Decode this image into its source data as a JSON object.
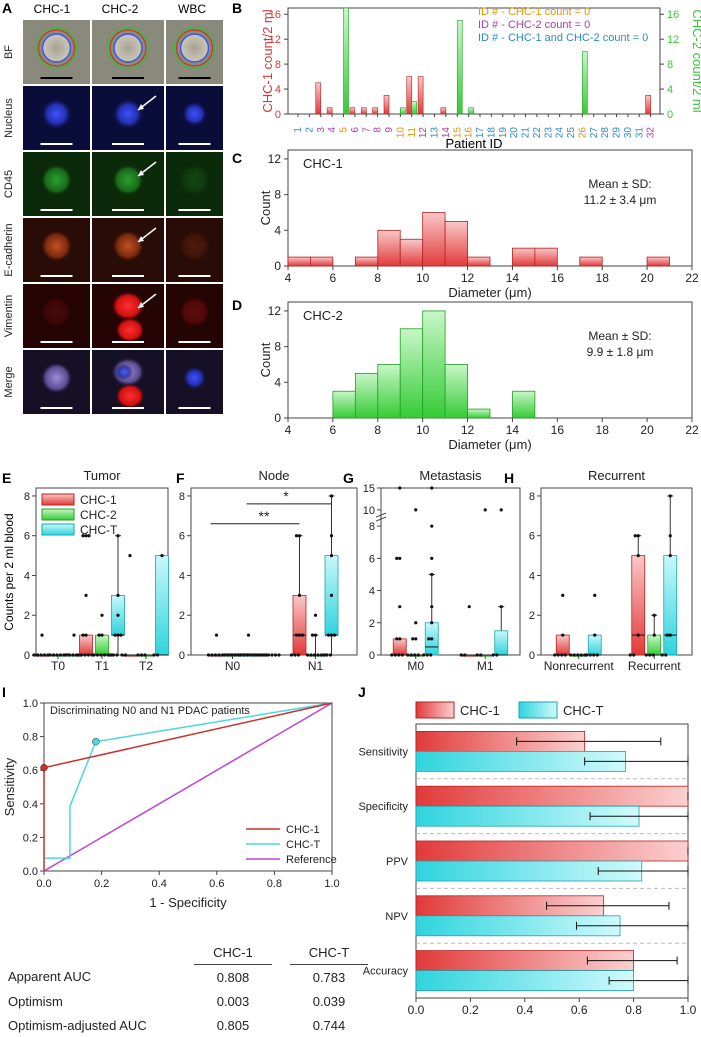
{
  "panelA": {
    "label": "A",
    "columns": [
      "CHC-1",
      "CHC-2",
      "WBC"
    ],
    "rows": [
      "BF",
      "Nucleus",
      "CD45",
      "E-cadherin",
      "Vimentin",
      "Merge"
    ],
    "colors": {
      "BF": "#8a8a7c",
      "Nucleus": "#0a0c3a",
      "CD45": "#0a2a0a",
      "E-cadherin": "#2a0c06",
      "Vimentin": "#250404",
      "Merge": "#161026"
    }
  },
  "panelB": {
    "label": "B",
    "ylabel_left": "CHC-1 count/2 ml",
    "ylabel_right": "CHC-2 count/2 ml",
    "xlabel": "Patient ID",
    "legend": [
      {
        "text": "ID # - CHC-1 count = 0",
        "color": "#e69500"
      },
      {
        "text": "ID # - CHC-2 count = 0",
        "color": "#b03ab0"
      },
      {
        "text": "ID # - CHC-1 and CHC-2 count = 0",
        "color": "#2e8bc9"
      }
    ]
  },
  "panelC": {
    "label": "C"
  },
  "panelD": {
    "label": "D"
  },
  "panelE": {
    "label": "E"
  },
  "panelF": {
    "label": "F"
  },
  "panelG": {
    "label": "G"
  },
  "panelH": {
    "label": "H"
  },
  "panelI": {
    "label": "I"
  },
  "panelJ": {
    "label": "J"
  },
  "shared": {
    "box_ylabel": "Counts per 2 ml blood"
  },
  "auc_table": {
    "headers": [
      "",
      "CHC-1",
      "CHC-T"
    ],
    "rows": [
      {
        "label": "Apparent AUC",
        "chc1": "0.808",
        "chct": "0.783"
      },
      {
        "label": "Optimism",
        "chc1": "0.003",
        "chct": "0.039"
      },
      {
        "label": "Optimism-adjusted AUC",
        "chc1": "0.805",
        "chct": "0.744"
      }
    ]
  },
  "chart_data": [
    {
      "id": "B",
      "type": "bar",
      "categories": [
        "1",
        "2",
        "3",
        "4",
        "5",
        "6",
        "7",
        "8",
        "9",
        "10",
        "11",
        "12",
        "13",
        "14",
        "15",
        "16",
        "17",
        "18",
        "19",
        "20",
        "21",
        "22",
        "23",
        "24",
        "25",
        "26",
        "27",
        "28",
        "29",
        "30",
        "31",
        "32"
      ],
      "category_colors": [
        "#2e8bc9",
        "#2e8bc9",
        "#b03ab0",
        "#b03ab0",
        "#e69500",
        "#b03ab0",
        "#b03ab0",
        "#b03ab0",
        "#b03ab0",
        "#e69500",
        "#e69500",
        "#b03ab0",
        "#2e8bc9",
        "#b03ab0",
        "#e69500",
        "#e69500",
        "#2e8bc9",
        "#2e8bc9",
        "#2e8bc9",
        "#2e8bc9",
        "#2e8bc9",
        "#2e8bc9",
        "#2e8bc9",
        "#2e8bc9",
        "#2e8bc9",
        "#e69500",
        "#2e8bc9",
        "#2e8bc9",
        "#2e8bc9",
        "#2e8bc9",
        "#2e8bc9",
        "#b03ab0"
      ],
      "series": [
        {
          "name": "CHC-1",
          "color": "#e04040",
          "values": [
            0,
            0,
            5,
            1,
            0,
            1,
            1,
            1,
            3,
            0,
            6,
            6,
            0,
            1,
            0,
            0,
            0,
            0,
            0,
            0,
            0,
            0,
            0,
            0,
            0,
            0,
            0,
            0,
            0,
            0,
            0,
            3
          ]
        },
        {
          "name": "CHC-2",
          "color": "#40d040",
          "values": [
            0,
            0,
            0,
            0,
            17,
            0,
            0,
            0,
            0,
            1,
            2,
            0,
            0,
            0,
            15,
            1,
            0,
            0,
            0,
            0,
            0,
            0,
            0,
            0,
            0,
            10,
            0,
            0,
            0,
            0,
            0,
            0
          ]
        }
      ],
      "ylim_left": [
        0,
        17
      ],
      "ylim_right": [
        0,
        17
      ],
      "yticks": [
        0,
        4,
        8,
        12,
        16
      ],
      "xlabel": "Patient ID",
      "ylabel": "CHC-1 count/2 ml",
      "ylabel_right": "CHC-2 count/2 ml"
    },
    {
      "id": "C",
      "type": "histogram",
      "title": "CHC-1",
      "bins": [
        [
          4,
          5
        ],
        [
          5,
          6
        ],
        [
          7,
          8
        ],
        [
          8,
          9
        ],
        [
          9,
          10
        ],
        [
          10,
          11
        ],
        [
          11,
          12
        ],
        [
          12,
          13
        ],
        [
          14,
          15
        ],
        [
          15,
          16
        ],
        [
          17,
          18
        ],
        [
          20,
          21
        ]
      ],
      "counts": [
        1,
        1,
        1,
        4,
        3,
        6,
        5,
        1,
        2,
        2,
        1,
        1
      ],
      "xlim": [
        4,
        22
      ],
      "xticks": [
        4,
        6,
        8,
        10,
        12,
        14,
        16,
        18,
        20,
        22
      ],
      "ylim": [
        0,
        13
      ],
      "yticks": [
        0,
        4,
        8,
        12
      ],
      "xlabel": "Diameter (μm)",
      "ylabel": "Count",
      "annotation": [
        "Mean ± SD:",
        "11.2 ± 3.4 μm"
      ]
    },
    {
      "id": "D",
      "type": "histogram",
      "title": "CHC-2",
      "bins": [
        [
          6,
          7
        ],
        [
          7,
          8
        ],
        [
          8,
          9
        ],
        [
          9,
          10
        ],
        [
          10,
          11
        ],
        [
          11,
          12
        ],
        [
          12,
          13
        ],
        [
          14,
          15
        ]
      ],
      "counts": [
        3,
        5,
        6,
        10,
        12,
        6,
        1,
        3
      ],
      "xlim": [
        4,
        22
      ],
      "xticks": [
        4,
        6,
        8,
        10,
        12,
        14,
        16,
        18,
        20,
        22
      ],
      "ylim": [
        0,
        13
      ],
      "yticks": [
        0,
        4,
        8,
        12
      ],
      "xlabel": "Diameter (μm)",
      "ylabel": "Count",
      "annotation": [
        "Mean ± SD:",
        "9.9 ± 1.8 μm"
      ]
    },
    {
      "id": "E",
      "type": "box",
      "title": "Tumor",
      "groups": [
        "T0",
        "T1",
        "T2"
      ],
      "legend": [
        "CHC-1",
        "CHC-2",
        "CHC-T"
      ],
      "ylim": [
        0,
        8.4
      ],
      "yticks": [
        0,
        2,
        4,
        6,
        8
      ],
      "boxes": [
        {
          "group": "T0",
          "series": "CHC-1",
          "q1": 0,
          "median": 0,
          "q3": 0,
          "wlo": 0,
          "whi": 0,
          "points": [
            0,
            0,
            0,
            0,
            0,
            1
          ]
        },
        {
          "group": "T0",
          "series": "CHC-2",
          "q1": 0,
          "median": 0,
          "q3": 0,
          "wlo": 0,
          "whi": 0,
          "points": [
            0,
            0,
            0,
            0,
            0,
            0
          ]
        },
        {
          "group": "T0",
          "series": "CHC-T",
          "q1": 0,
          "median": 0,
          "q3": 0,
          "wlo": 0,
          "whi": 0,
          "points": [
            0,
            0,
            0,
            0,
            0,
            1
          ]
        },
        {
          "group": "T1",
          "series": "CHC-1",
          "q1": 0,
          "median": 0,
          "q3": 1,
          "wlo": 0,
          "whi": 1,
          "points": [
            0,
            0,
            0,
            0,
            0,
            1,
            1,
            3,
            6,
            6,
            6
          ]
        },
        {
          "group": "T1",
          "series": "CHC-2",
          "q1": 0,
          "median": 0,
          "q3": 1,
          "wlo": 0,
          "whi": 1,
          "points": [
            0,
            0,
            0,
            0,
            0,
            0,
            1,
            1,
            2
          ]
        },
        {
          "group": "T1",
          "series": "CHC-T",
          "q1": 1,
          "median": 1,
          "q3": 3,
          "wlo": 0,
          "whi": 6,
          "points": [
            0,
            0,
            0,
            1,
            1,
            1,
            2,
            3,
            6
          ]
        },
        {
          "group": "T2",
          "series": "CHC-1",
          "q1": 0,
          "median": 0,
          "q3": 0,
          "wlo": 0,
          "whi": 0,
          "points": [
            0,
            0,
            5
          ]
        },
        {
          "group": "T2",
          "series": "CHC-2",
          "q1": 0,
          "median": 0,
          "q3": 0,
          "wlo": 0,
          "whi": 0,
          "points": [
            0,
            0,
            0
          ]
        },
        {
          "group": "T2",
          "series": "CHC-T",
          "q1": 0,
          "median": 0,
          "q3": 5,
          "wlo": 0,
          "whi": 5,
          "points": [
            0,
            0,
            5
          ]
        }
      ]
    },
    {
      "id": "F",
      "type": "box",
      "title": "Node",
      "groups": [
        "N0",
        "N1"
      ],
      "ylim": [
        0,
        8.4
      ],
      "yticks": [
        0,
        2,
        4,
        6,
        8
      ],
      "significance": [
        {
          "from": "N0",
          "to": "N1",
          "label": "**",
          "at": 6.6
        },
        {
          "from": "N1-CHC-1",
          "to": "N1-CHC-T",
          "label": "*",
          "at": 7.6
        }
      ],
      "boxes": [
        {
          "group": "N0",
          "series": "CHC-1",
          "q1": 0,
          "median": 0,
          "q3": 0,
          "wlo": 0,
          "whi": 0,
          "points": [
            0,
            0,
            0,
            0,
            0,
            0,
            0,
            0,
            0,
            0,
            0,
            0,
            1
          ]
        },
        {
          "group": "N0",
          "series": "CHC-2",
          "q1": 0,
          "median": 0,
          "q3": 0,
          "wlo": 0,
          "whi": 0,
          "points": [
            0,
            0,
            0,
            0,
            0,
            0,
            0,
            0,
            0,
            0,
            0,
            0,
            0
          ]
        },
        {
          "group": "N0",
          "series": "CHC-T",
          "q1": 0,
          "median": 0,
          "q3": 0,
          "wlo": 0,
          "whi": 0,
          "points": [
            0,
            0,
            0,
            0,
            0,
            0,
            0,
            0,
            0,
            0,
            0,
            0,
            1
          ]
        },
        {
          "group": "N1",
          "series": "CHC-1",
          "q1": 0,
          "median": 1,
          "q3": 3,
          "wlo": 0,
          "whi": 6,
          "points": [
            0,
            0,
            0,
            1,
            1,
            1,
            3,
            6,
            6
          ]
        },
        {
          "group": "N1",
          "series": "CHC-2",
          "q1": 0,
          "median": 0,
          "q3": 0,
          "wlo": 0,
          "whi": 1,
          "points": [
            0,
            0,
            0,
            0,
            0,
            0,
            1,
            1,
            2
          ]
        },
        {
          "group": "N1",
          "series": "CHC-T",
          "q1": 1,
          "median": 1,
          "q3": 5,
          "wlo": 0,
          "whi": 8,
          "points": [
            0,
            0,
            0,
            1,
            1,
            1,
            3,
            5,
            6,
            8
          ]
        }
      ]
    },
    {
      "id": "G",
      "type": "box",
      "title": "Metastasis",
      "groups": [
        "M0",
        "M1"
      ],
      "ylim": [
        0,
        15
      ],
      "yticks": [
        0,
        2,
        4,
        6,
        8,
        10,
        15
      ],
      "axis_break": [
        8.5,
        9.5
      ],
      "boxes": [
        {
          "group": "M0",
          "series": "CHC-1",
          "q1": 0,
          "median": 0,
          "q3": 1,
          "wlo": 0,
          "whi": 1,
          "points": [
            0,
            0,
            0,
            0,
            1,
            1,
            3,
            6,
            6,
            15
          ]
        },
        {
          "group": "M0",
          "series": "CHC-2",
          "q1": 0,
          "median": 0,
          "q3": 0,
          "wlo": 0,
          "whi": 0,
          "points": [
            0,
            0,
            0,
            0,
            1,
            1,
            2,
            10
          ]
        },
        {
          "group": "M0",
          "series": "CHC-T",
          "q1": 0,
          "median": 0.5,
          "q3": 2,
          "wlo": 0,
          "whi": 5,
          "points": [
            0,
            0,
            0,
            1,
            1,
            2,
            3,
            5,
            6,
            8,
            15
          ]
        },
        {
          "group": "M1",
          "series": "CHC-1",
          "q1": 0,
          "median": 0,
          "q3": 0,
          "wlo": 0,
          "whi": 0,
          "points": [
            0,
            0,
            3
          ]
        },
        {
          "group": "M1",
          "series": "CHC-2",
          "q1": 0,
          "median": 0,
          "q3": 0,
          "wlo": 0,
          "whi": 0,
          "points": [
            0,
            0,
            10
          ]
        },
        {
          "group": "M1",
          "series": "CHC-T",
          "q1": 0,
          "median": 0,
          "q3": 1.5,
          "wlo": 0,
          "whi": 3,
          "points": [
            0,
            0,
            3,
            10
          ]
        }
      ]
    },
    {
      "id": "H",
      "type": "box",
      "title": "Recurrent",
      "groups": [
        "Nonrecurrent",
        "Recurrent"
      ],
      "ylim": [
        0,
        8.4
      ],
      "yticks": [
        0,
        2,
        4,
        6,
        8
      ],
      "boxes": [
        {
          "group": "Nonrecurrent",
          "series": "CHC-1",
          "q1": 0,
          "median": 0,
          "q3": 1,
          "wlo": 0,
          "whi": 1,
          "points": [
            0,
            0,
            0,
            0,
            1,
            3
          ]
        },
        {
          "group": "Nonrecurrent",
          "series": "CHC-2",
          "q1": 0,
          "median": 0,
          "q3": 0,
          "wlo": 0,
          "whi": 0,
          "points": [
            0,
            0,
            0,
            0,
            0
          ]
        },
        {
          "group": "Nonrecurrent",
          "series": "CHC-T",
          "q1": 0,
          "median": 0,
          "q3": 1,
          "wlo": 0,
          "whi": 1,
          "points": [
            0,
            0,
            0,
            0,
            1,
            3
          ]
        },
        {
          "group": "Recurrent",
          "series": "CHC-1",
          "q1": 0,
          "median": 1,
          "q3": 5,
          "wlo": 0,
          "whi": 6,
          "points": [
            0,
            0,
            1,
            5,
            6,
            6
          ]
        },
        {
          "group": "Recurrent",
          "series": "CHC-2",
          "q1": 0,
          "median": 0,
          "q3": 1,
          "wlo": 0,
          "whi": 2,
          "points": [
            0,
            0,
            0,
            1,
            2
          ]
        },
        {
          "group": "Recurrent",
          "series": "CHC-T",
          "q1": 0,
          "median": 1,
          "q3": 5,
          "wlo": 0,
          "whi": 8,
          "points": [
            0,
            0,
            1,
            1,
            5,
            6,
            8
          ]
        }
      ]
    },
    {
      "id": "I",
      "type": "line",
      "title": "Discriminating N0 and N1 PDAC patients",
      "xlabel": "1 - Specificity",
      "ylabel": "Sensitivity",
      "xlim": [
        0,
        1
      ],
      "ylim": [
        0,
        1
      ],
      "ticks": [
        0.0,
        0.2,
        0.4,
        0.6,
        0.8,
        1.0
      ],
      "series": [
        {
          "name": "CHC-1",
          "color": "#c8302a",
          "x": [
            0,
            0,
            1
          ],
          "y": [
            0,
            0.615,
            1
          ],
          "marker": [
            0,
            0.615
          ]
        },
        {
          "name": "CHC-T",
          "color": "#4dd6e0",
          "x": [
            0,
            0.09,
            0.09,
            0.18,
            1
          ],
          "y": [
            0.077,
            0.077,
            0.385,
            0.77,
            1
          ],
          "marker": [
            0.18,
            0.77
          ]
        },
        {
          "name": "Reference",
          "color": "#c040d8",
          "x": [
            0,
            1
          ],
          "y": [
            0,
            1
          ]
        }
      ]
    },
    {
      "id": "J",
      "type": "bar",
      "orientation": "horizontal",
      "categories": [
        "Sensitivity",
        "Specificity",
        "PPV",
        "NPV",
        "Accuracy"
      ],
      "series": [
        {
          "name": "CHC-1",
          "color": "#e04040",
          "values": [
            0.62,
            1.0,
            1.0,
            0.69,
            0.8
          ],
          "err_lo": [
            0.37,
            1.0,
            1.0,
            0.48,
            0.63
          ],
          "err_hi": [
            0.9,
            1.0,
            1.0,
            0.93,
            0.96
          ]
        },
        {
          "name": "CHC-T",
          "color": "#40d8e0",
          "values": [
            0.77,
            0.82,
            0.83,
            0.75,
            0.8
          ],
          "err_lo": [
            0.62,
            0.64,
            0.67,
            0.59,
            0.71
          ],
          "err_hi": [
            1.0,
            1.0,
            1.0,
            1.0,
            1.0
          ]
        }
      ],
      "xlim": [
        0,
        1
      ],
      "xticks": [
        0.0,
        0.2,
        0.4,
        0.6,
        0.8,
        1.0
      ]
    }
  ]
}
